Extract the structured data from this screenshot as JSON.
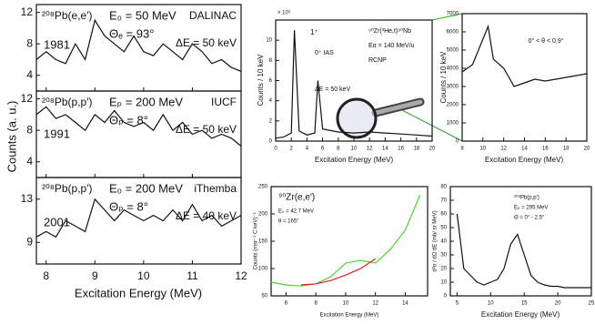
{
  "chart_data": [
    {
      "type": "line",
      "annotations": [
        "²⁰⁸Pb(e,e′)",
        "E₀ = 50 MeV",
        "Θₑ = 93°",
        "DALINAC",
        "1981",
        "ΔE = 50 keV"
      ],
      "xlim": [
        7.8,
        12
      ],
      "xticks": [
        8,
        9,
        10,
        11,
        12
      ],
      "ylim": [
        2,
        13
      ],
      "yticks": [
        4,
        8,
        12
      ],
      "series": [
        {
          "color": "#111111",
          "x": [
            7.8,
            8,
            8.2,
            8.4,
            8.6,
            8.8,
            9,
            9.2,
            9.4,
            9.6,
            9.8,
            10,
            10.2,
            10.4,
            10.6,
            10.8,
            11,
            11.2,
            11.4,
            11.6,
            11.8,
            12
          ],
          "values": [
            6,
            7,
            6,
            5.5,
            8,
            6,
            11,
            9,
            8,
            7,
            9,
            7,
            6.5,
            8,
            7,
            6,
            8,
            7,
            5.5,
            6,
            5,
            4.5
          ]
        }
      ]
    },
    {
      "type": "line",
      "y_label": "Counts (a. u.)",
      "annotations": [
        "²⁰⁸Pb(p,p′)",
        "Eₚ = 200 MeV",
        "Θₚ = 8°",
        "IUCF",
        "1991",
        "ΔE = 50 keV"
      ],
      "xlim": [
        7.8,
        12
      ],
      "xticks": [
        8,
        9,
        10,
        11,
        12
      ],
      "ylim": [
        2,
        13
      ],
      "yticks": [
        4,
        8,
        12
      ],
      "series": [
        {
          "color": "#111111",
          "x": [
            7.8,
            8,
            8.2,
            8.4,
            8.6,
            8.8,
            9,
            9.2,
            9.4,
            9.6,
            9.8,
            10,
            10.2,
            10.4,
            10.6,
            10.8,
            11,
            11.2,
            11.4,
            11.6,
            11.8,
            12
          ],
          "values": [
            10,
            11,
            9.5,
            10,
            9,
            8,
            10,
            9,
            10.5,
            9,
            8.5,
            9,
            8,
            10,
            8,
            9,
            7.5,
            8,
            7,
            7.5,
            7,
            6
          ]
        }
      ]
    },
    {
      "type": "line",
      "x_label": "Excitation Energy (MeV)",
      "annotations": [
        "²⁰⁸Pb(p,p′)",
        "E₀ = 200 MeV",
        "Θₚ = 8°",
        "iThemba",
        "2001",
        "ΔE = 40 keV"
      ],
      "xlim": [
        7.8,
        12
      ],
      "xticks": [
        8,
        9,
        10,
        11,
        12
      ],
      "ylim": [
        7,
        15
      ],
      "yticks": [
        9,
        13
      ],
      "series": [
        {
          "color": "#111111",
          "x": [
            7.8,
            8,
            8.2,
            8.4,
            8.6,
            8.8,
            9,
            9.2,
            9.4,
            9.6,
            9.8,
            10,
            10.2,
            10.4,
            10.6,
            10.8,
            11,
            11.2,
            11.4,
            11.6,
            11.8,
            12
          ],
          "values": [
            9.5,
            10,
            9.5,
            11,
            10.5,
            10,
            13,
            12,
            11,
            12,
            11.5,
            11,
            11.5,
            11,
            12,
            11,
            12.5,
            11,
            11.5,
            10.5,
            11,
            11.5
          ]
        }
      ]
    },
    {
      "type": "line",
      "x_label": "Excitation Energy (MeV)",
      "y_label": "Counts / 10 keV",
      "annotations": [
        "× 10³",
        "1⁺",
        "0⁺ IAS",
        "ΔE = 50 keV",
        "⁹⁰Zr(³He,t)⁹⁰Nb",
        "Eα = 140 MeV/u",
        "RCNP"
      ],
      "xlim": [
        0,
        20
      ],
      "xticks": [
        0,
        2,
        4,
        6,
        8,
        10,
        12,
        14,
        16,
        18,
        20
      ],
      "ylim": [
        0,
        12
      ],
      "yticks": [
        0,
        2,
        4,
        6,
        8,
        10
      ],
      "series": [
        {
          "color": "#111111",
          "x": [
            0,
            1,
            2,
            2.4,
            3,
            4,
            5,
            5.4,
            6,
            8,
            10,
            12,
            14,
            16,
            18,
            20
          ],
          "values": [
            0.3,
            0.4,
            0.8,
            11,
            1,
            0.6,
            0.8,
            6,
            1.2,
            0.9,
            0.8,
            0.9,
            0.8,
            0.7,
            0.6,
            0.5
          ]
        }
      ]
    },
    {
      "type": "line",
      "x_label": "Excitation Energy (MeV)",
      "y_label": "Counts / 10 keV",
      "annotations": [
        "0° < θ < 0.9°"
      ],
      "xlim": [
        8,
        20
      ],
      "xticks": [
        8,
        10,
        12,
        14,
        16,
        18,
        20
      ],
      "ylim": [
        0,
        7000
      ],
      "yticks": [
        0,
        1000,
        2000,
        3000,
        4000,
        5000,
        6000,
        7000
      ],
      "series": [
        {
          "color": "#111111",
          "x": [
            8,
            9,
            10,
            10.5,
            11,
            12,
            13,
            14,
            15,
            16,
            17,
            18,
            19,
            20
          ],
          "values": [
            3800,
            4200,
            5600,
            6300,
            4500,
            4000,
            3000,
            3200,
            3400,
            3300,
            3400,
            3500,
            3600,
            3700
          ]
        }
      ]
    },
    {
      "type": "line",
      "x_label": "Excitation Energy (MeV)",
      "y_label": "Counts (msr⁻¹ C keV)⁻¹",
      "annotations": [
        "⁹⁰Zr(e,e′)",
        "E₀ = 42.7 MeV",
        "θ = 165°"
      ],
      "xlim": [
        5,
        15.5
      ],
      "xticks": [
        6,
        8,
        10,
        12,
        14
      ],
      "ylim": [
        50,
        250
      ],
      "yticks": [
        50,
        100,
        150,
        200,
        250
      ],
      "series": [
        {
          "color": "#4cd430",
          "x": [
            5,
            6,
            7,
            8,
            9,
            10,
            11,
            12,
            13,
            14,
            15
          ],
          "values": [
            75,
            70,
            68,
            72,
            85,
            110,
            115,
            110,
            135,
            170,
            235
          ]
        },
        {
          "color": "#e02020",
          "x": [
            7,
            8,
            9,
            10,
            11,
            12
          ],
          "values": [
            70,
            72,
            78,
            88,
            100,
            118
          ]
        }
      ]
    },
    {
      "type": "line",
      "x_label": "Excitation Energy (MeV)",
      "y_label": "d²σ / dΩ dE (mb/ sr MeV)",
      "annotations": [
        "²⁰⁸Pb(p,p′)",
        "Eₚ = 295 MeV",
        "Θ = 0° - 2.5°"
      ],
      "xlim": [
        4,
        25
      ],
      "xticks": [
        5,
        10,
        15,
        20,
        25
      ],
      "ylim": [
        0,
        80
      ],
      "yticks": [
        0,
        10,
        20,
        30,
        40,
        50,
        60,
        70,
        80
      ],
      "series": [
        {
          "color": "#111111",
          "x": [
            5,
            6,
            7,
            8,
            9,
            10,
            11,
            12,
            13,
            14,
            15,
            16,
            17,
            18,
            19,
            20,
            21,
            22,
            23,
            24,
            25
          ],
          "values": [
            60,
            20,
            15,
            10,
            8,
            10,
            12,
            20,
            38,
            45,
            30,
            15,
            10,
            8,
            7,
            7,
            6,
            6,
            6,
            6,
            6
          ]
        }
      ]
    }
  ]
}
